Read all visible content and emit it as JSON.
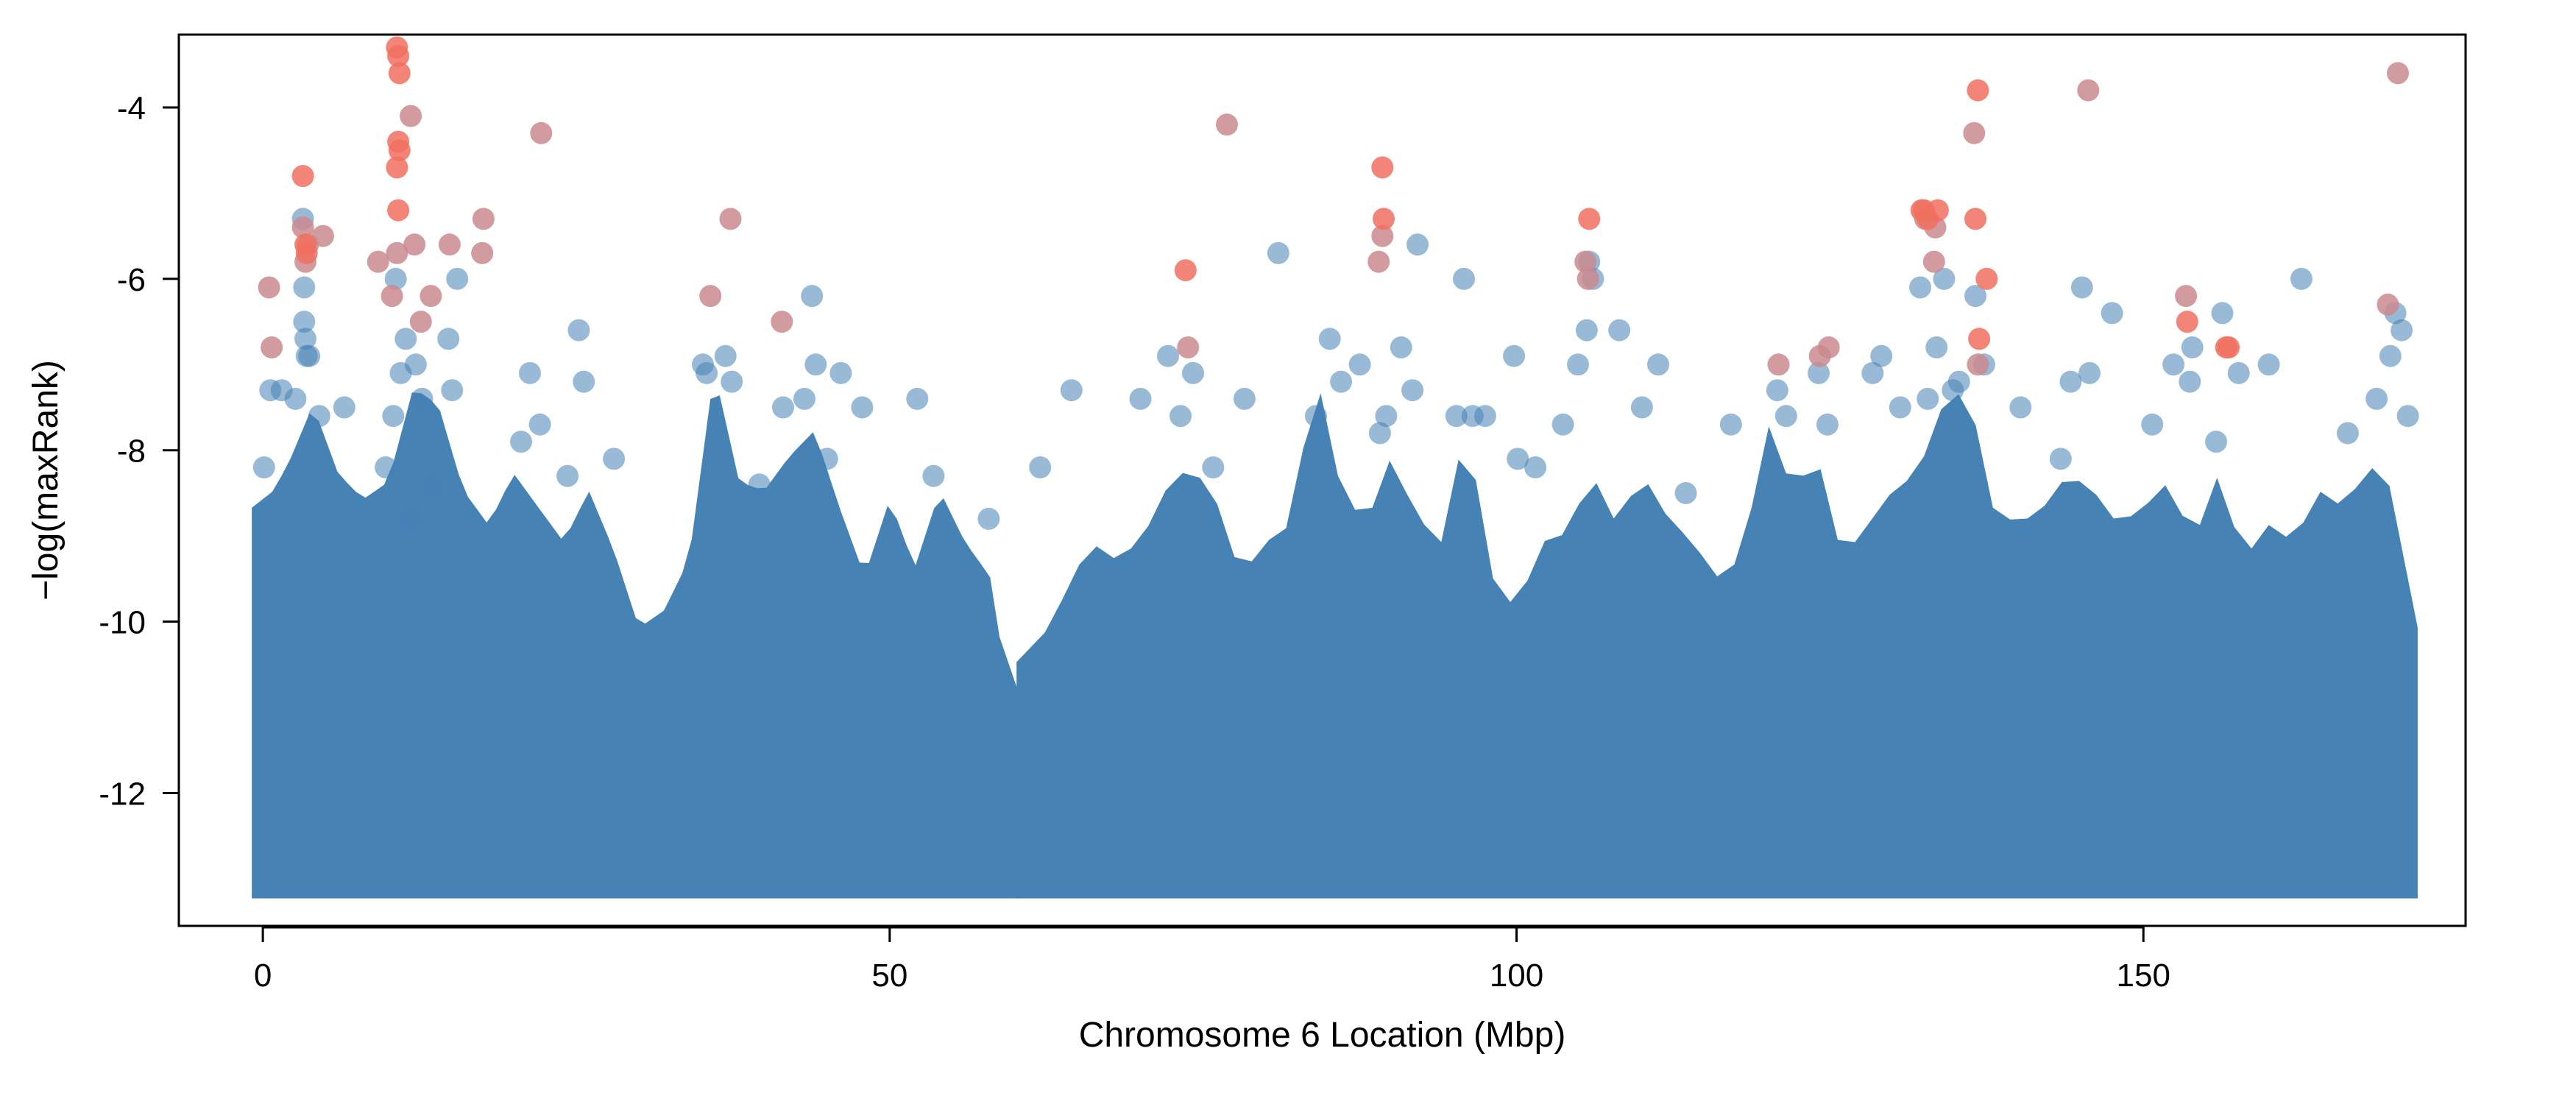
{
  "colors": {
    "background": "#ffffff",
    "points_main": "#4682b4",
    "points_top": "#f07060",
    "points_mid": "#c98a8e",
    "axis": "#000000"
  },
  "chart_data": {
    "type": "scatter",
    "title": "",
    "xlabel": "Chromosome 6 Location (Mbp)",
    "ylabel": "−log(maxRank)",
    "xlim": [
      -6.7,
      175.7
    ],
    "ylim": [
      -13.55,
      -3.15
    ],
    "xticks": [
      0,
      50,
      100,
      150
    ],
    "xtick_labels": [
      "0",
      "50",
      "100",
      "150"
    ],
    "yticks": [
      -12,
      -10,
      -8,
      -6,
      -4
    ],
    "ytick_labels": [
      "-12",
      "-10",
      "-8",
      "-6",
      "-4"
    ],
    "grid": false,
    "legend": "none",
    "dense_band": {
      "y_floor": -13.1,
      "segments": [
        [
          0,
          59.5
        ],
        [
          61.0,
          171.0
        ]
      ],
      "profile_x": [
        0,
        2,
        4,
        6,
        8,
        10,
        12,
        14,
        16,
        18,
        20,
        22,
        24,
        26,
        28,
        30,
        32,
        34,
        36,
        38,
        40,
        42,
        44,
        46,
        48,
        50,
        52,
        54,
        56,
        58,
        59.5,
        61,
        63,
        66,
        68,
        70,
        72,
        74,
        76,
        78,
        80,
        82,
        84,
        86,
        88,
        90,
        92,
        94,
        96,
        98,
        100,
        102,
        104,
        106,
        108,
        110,
        112,
        114,
        116,
        118,
        120,
        122,
        124,
        126,
        128,
        130,
        132,
        134,
        136,
        138,
        140,
        142,
        144,
        146,
        148,
        150,
        152,
        154,
        156,
        158,
        160,
        162,
        164,
        166,
        168,
        170,
        171
      ],
      "profile_top": [
        -8.8,
        -8.3,
        -7.6,
        -8.4,
        -8.7,
        -8.5,
        -7.4,
        -7.6,
        -8.6,
        -9.0,
        -8.4,
        -8.8,
        -9.2,
        -8.6,
        -9.3,
        -10.2,
        -10.0,
        -9.4,
        -7.2,
        -8.5,
        -8.6,
        -8.2,
        -7.9,
        -8.8,
        -9.6,
        -8.7,
        -9.5,
        -8.6,
        -9.2,
        -9.6,
        -11.0,
        -10.6,
        -10.1,
        -9.2,
        -9.4,
        -9.2,
        -8.6,
        -8.3,
        -8.7,
        -9.6,
        -9.2,
        -9.0,
        -7.2,
        -8.6,
        -9.0,
        -8.2,
        -8.9,
        -9.2,
        -7.8,
        -9.6,
        -10.0,
        -9.2,
        -9.1,
        -8.4,
        -9.0,
        -8.4,
        -8.9,
        -9.2,
        -9.6,
        -9.4,
        -7.8,
        -8.6,
        -8.2,
        -9.4,
        -9.0,
        -8.6,
        -8.4,
        -7.6,
        -7.4,
        -8.8,
        -9.0,
        -8.8,
        -8.4,
        -8.6,
        -9.0,
        -8.8,
        -8.5,
        -9.2,
        -8.4,
        -9.4,
        -9.0,
        -9.2,
        -8.6,
        -8.8,
        -8.3,
        -8.6,
        -10.2
      ]
    },
    "series": [
      {
        "color": "#4682b4",
        "x": [
          0.1,
          0.6,
          1.5,
          2.6,
          3.2,
          3.3,
          3.3,
          3.4,
          3.5,
          3.7,
          4.5,
          6.5,
          9.8,
          10.4,
          10.6,
          11.0,
          11.4,
          11.8,
          12.2,
          12.7,
          13.5,
          14.8,
          15.1,
          15.5,
          20.6,
          21.3,
          22.1,
          24.3,
          25.2,
          25.6,
          28.0,
          35.1,
          35.4,
          36.9,
          37.4,
          39.6,
          41.5,
          43.2,
          43.8,
          44.1,
          45.0,
          46.1,
          47.8,
          52.2,
          53.5,
          57.9,
          62.0,
          64.5,
          70.0,
          72.2,
          73.2,
          74.2,
          75.8,
          78.3,
          81.0,
          84.0,
          85.1,
          86.0,
          87.5,
          89.1,
          89.6,
          90.8,
          91.7,
          92.1,
          95.2,
          95.8,
          96.5,
          97.5,
          99.8,
          100.1,
          101.5,
          103.7,
          104.9,
          105.6,
          105.8,
          106.1,
          108.2,
          110.0,
          111.3,
          113.5,
          117.1,
          120.8,
          121.5,
          124.1,
          124.8,
          128.4,
          129.1,
          130.6,
          132.2,
          132.8,
          133.5,
          134.1,
          134.8,
          135.3,
          136.6,
          137.3,
          140.2,
          143.4,
          144.2,
          145.1,
          145.7,
          147.5,
          150.7,
          152.4,
          153.7,
          153.9,
          155.8,
          156.3,
          157.6,
          160.0,
          162.6,
          166.3,
          168.6,
          169.7,
          170.1,
          170.6,
          171.1
        ],
        "y": [
          -8.2,
          -7.3,
          -7.3,
          -7.4,
          -5.3,
          -6.1,
          -6.5,
          -6.7,
          -6.9,
          -6.9,
          -7.6,
          -7.5,
          -8.2,
          -7.6,
          -6.0,
          -7.1,
          -6.7,
          -8.8,
          -7.0,
          -7.4,
          -8.4,
          -6.7,
          -7.3,
          -6.0,
          -7.9,
          -7.1,
          -7.7,
          -8.3,
          -6.6,
          -7.2,
          -8.1,
          -7.0,
          -7.1,
          -6.9,
          -7.2,
          -8.4,
          -7.5,
          -7.4,
          -6.2,
          -7.0,
          -8.1,
          -7.1,
          -7.5,
          -7.4,
          -8.3,
          -8.8,
          -8.2,
          -7.3,
          -7.4,
          -6.9,
          -7.6,
          -7.1,
          -8.2,
          -7.4,
          -5.7,
          -7.6,
          -6.7,
          -7.2,
          -7.0,
          -7.8,
          -7.6,
          -6.8,
          -7.3,
          -5.6,
          -7.6,
          -6.0,
          -7.6,
          -7.6,
          -6.9,
          -8.1,
          -8.2,
          -7.7,
          -7.0,
          -6.6,
          -5.8,
          -6.0,
          -6.6,
          -7.5,
          -7.0,
          -8.5,
          -7.7,
          -7.3,
          -7.6,
          -7.1,
          -7.7,
          -7.1,
          -6.9,
          -7.5,
          -6.1,
          -7.4,
          -6.8,
          -6.0,
          -7.3,
          -7.2,
          -6.2,
          -7.0,
          -7.5,
          -8.1,
          -7.2,
          -6.1,
          -7.1,
          -6.4,
          -7.7,
          -7.0,
          -7.2,
          -6.8,
          -7.9,
          -6.4,
          -7.1,
          -7.0,
          -6.0,
          -7.8,
          -7.4,
          -6.9,
          -6.4,
          -6.6,
          -7.6
        ]
      },
      {
        "color": "#c98a8e",
        "x": [
          0.5,
          0.7,
          3.2,
          3.4,
          3.6,
          4.8,
          9.2,
          10.3,
          10.7,
          11.8,
          12.1,
          12.6,
          13.4,
          14.9,
          17.5,
          17.6,
          22.2,
          35.7,
          37.3,
          41.4,
          73.8,
          76.9,
          89.0,
          89.3,
          105.5,
          105.7,
          120.9,
          124.2,
          124.9,
          132.6,
          133.3,
          133.4,
          136.5,
          136.8,
          145.6,
          153.4,
          169.5,
          170.3
        ],
        "y": [
          -6.1,
          -6.8,
          -5.4,
          -5.8,
          -5.6,
          -5.5,
          -5.8,
          -6.2,
          -5.7,
          -4.1,
          -5.6,
          -6.5,
          -6.2,
          -5.6,
          -5.7,
          -5.3,
          -4.3,
          -6.2,
          -5.3,
          -6.5,
          -6.8,
          -4.2,
          -5.8,
          -5.5,
          -5.8,
          -6.0,
          -7.0,
          -6.9,
          -6.8,
          -5.3,
          -5.8,
          -5.4,
          -4.3,
          -7.0,
          -3.8,
          -6.2,
          -6.3,
          -3.6
        ]
      },
      {
        "color": "#f07060",
        "x": [
          3.2,
          3.4,
          3.5,
          10.7,
          10.8,
          10.9,
          10.8,
          10.9,
          10.7,
          10.8,
          73.6,
          89.3,
          89.4,
          105.8,
          132.3,
          132.5,
          132.8,
          133.6,
          136.6,
          136.8,
          136.9,
          137.5,
          153.5,
          156.6,
          156.8
        ],
        "y": [
          -4.8,
          -5.6,
          -5.7,
          -3.3,
          -3.4,
          -3.6,
          -4.4,
          -4.5,
          -4.7,
          -5.2,
          -5.9,
          -4.7,
          -5.3,
          -5.3,
          -5.2,
          -5.2,
          -5.3,
          -5.2,
          -5.3,
          -3.8,
          -6.7,
          -6.0,
          -6.5,
          -6.8,
          -6.8
        ]
      }
    ]
  }
}
